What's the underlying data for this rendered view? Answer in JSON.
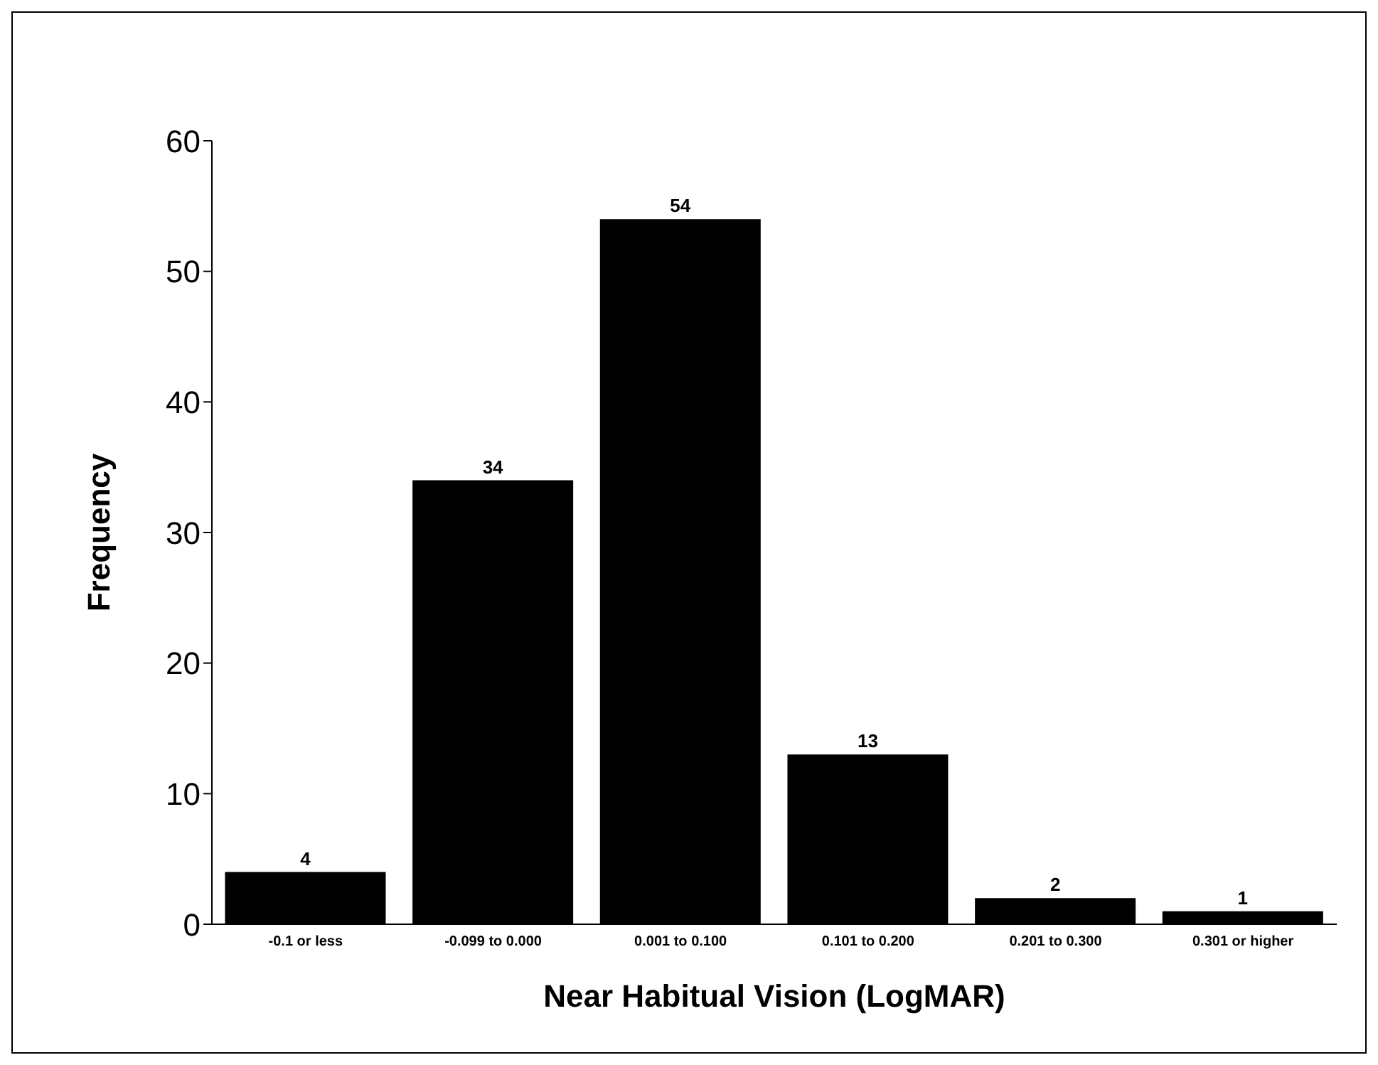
{
  "chart_data": {
    "type": "bar",
    "xlabel": "Near Habitual Vision (LogMAR)",
    "ylabel": "Frequency",
    "categories": [
      "-0.1 or less",
      "-0.099 to 0.000",
      "0.001 to 0.100",
      "0.101 to 0.200",
      "0.201 to 0.300",
      "0.301 or higher"
    ],
    "values": [
      4,
      34,
      54,
      13,
      2,
      1
    ],
    "color": "#000000",
    "ylim": [
      0,
      60
    ],
    "yticks": [
      0,
      10,
      20,
      30,
      40,
      50,
      60
    ],
    "grid": false,
    "data_labels": true
  }
}
